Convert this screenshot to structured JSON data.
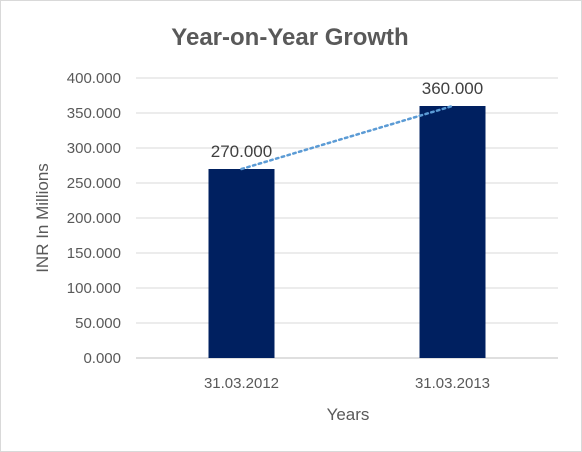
{
  "chart_data": {
    "type": "bar",
    "title": "Year-on-Year Growth",
    "xlabel": "Years",
    "ylabel": "INR In Millions",
    "categories": [
      "31.03.2012",
      "31.03.2013"
    ],
    "values": [
      270,
      360
    ],
    "data_labels": [
      "270.000",
      "360.000"
    ],
    "ylim": [
      0,
      400
    ],
    "yticks": [
      0,
      50,
      100,
      150,
      200,
      250,
      300,
      350,
      400
    ],
    "ytick_labels": [
      "0.000",
      "50.000",
      "100.000",
      "150.000",
      "200.000",
      "250.000",
      "300.000",
      "350.000",
      "400.000"
    ],
    "trendline": {
      "type": "linear",
      "style": "dotted",
      "color": "#5b9bd5"
    },
    "bar_color": "#002060",
    "grid": true,
    "legend": "none"
  }
}
